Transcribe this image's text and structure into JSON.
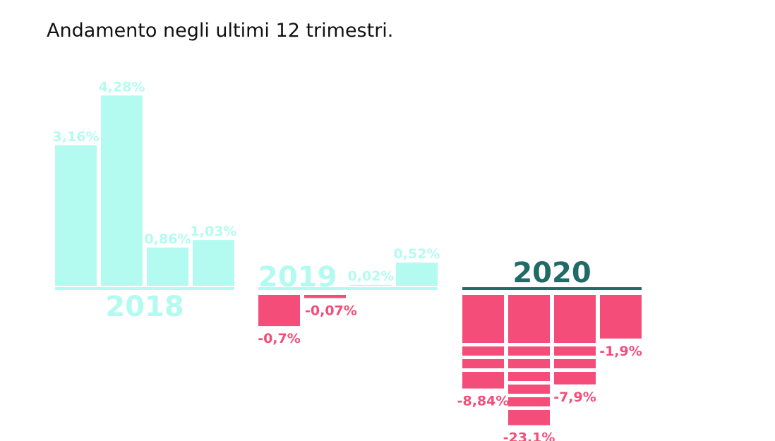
{
  "chart_data": {
    "type": "bar",
    "title": "Andamento negli ultimi 12 trimestri.",
    "positive_color": "#b3fbf0",
    "negative_color": "#f44d79",
    "current_year_color": "#1f6b66",
    "groups": [
      {
        "name": "2018",
        "values": [
          3.16,
          4.28,
          0.86,
          1.03
        ],
        "value_labels": [
          "3,16%",
          "4,28%",
          "0,86%",
          "1,03%"
        ]
      },
      {
        "name": "2019",
        "values": [
          -0.7,
          -0.07,
          0.02,
          0.52
        ],
        "value_labels": [
          "-0,7%",
          "-0,07%",
          "0,02%",
          "0,52%"
        ]
      },
      {
        "name": "2020",
        "values": [
          -8.84,
          -23.1,
          -7.9,
          -1.9
        ],
        "value_labels": [
          "-8,84%",
          "-23,1%",
          "-7,9%",
          "-1,9%"
        ]
      }
    ]
  }
}
